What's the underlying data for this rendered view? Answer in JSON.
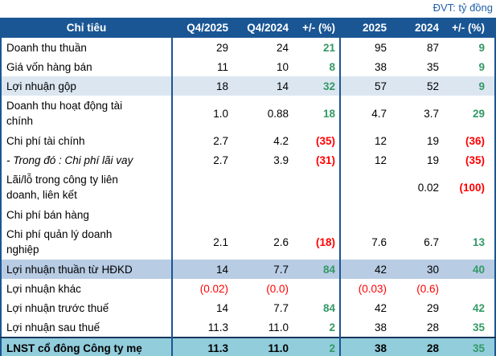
{
  "meta": {
    "unit_note": "ĐVT: tỷ đồng"
  },
  "colors": {
    "header_bg": "#1A5694",
    "highlight_light": "#DCE6F1",
    "highlight_medium": "#B8CCE4",
    "highlight_final": "#92CDDC",
    "positive": "#339966",
    "negative": "#FF0000",
    "note_blue": "#1F5FA8"
  },
  "table": {
    "columns": [
      "Chỉ tiêu",
      "Q4/2025",
      "Q4/2024",
      "+/- (%)",
      "2025",
      "2024",
      "+/- (%)"
    ],
    "rows": [
      {
        "label": "Doanh thu thuần",
        "q4_2025": "29",
        "q4_2024": "24",
        "chg_q": "21",
        "y2025": "95",
        "y2024": "87",
        "chg_y": "9"
      },
      {
        "label": "Giá vốn hàng bán",
        "q4_2025": "11",
        "q4_2024": "10",
        "chg_q": "8",
        "y2025": "38",
        "y2024": "35",
        "chg_y": "9"
      },
      {
        "label": "Lợi nhuận gộp",
        "q4_2025": "18",
        "q4_2024": "14",
        "chg_q": "32",
        "y2025": "57",
        "y2024": "52",
        "chg_y": "9"
      },
      {
        "label": "Doanh thu hoạt động tài chính",
        "q4_2025": "1.0",
        "q4_2024": "0.88",
        "chg_q": "18",
        "y2025": "4.7",
        "y2024": "3.7",
        "chg_y": "29"
      },
      {
        "label": "Chi phí tài chính",
        "q4_2025": "2.7",
        "q4_2024": "4.2",
        "chg_q": "(35)",
        "y2025": "12",
        "y2024": "19",
        "chg_y": "(36)"
      },
      {
        "label": "- Trong đó : Chi phí lãi vay",
        "q4_2025": "2.7",
        "q4_2024": "3.9",
        "chg_q": "(31)",
        "y2025": "12",
        "y2024": "19",
        "chg_y": "(35)"
      },
      {
        "label": "Lãi/lỗ trong công ty liên doanh, liên kết",
        "q4_2025": "",
        "q4_2024": "",
        "chg_q": "",
        "y2025": "",
        "y2024": "0.02",
        "chg_y": "(100)"
      },
      {
        "label": "Chi phí bán hàng",
        "q4_2025": "",
        "q4_2024": "",
        "chg_q": "",
        "y2025": "",
        "y2024": "",
        "chg_y": ""
      },
      {
        "label": "Chi phí quản lý doanh nghiệp",
        "q4_2025": "2.1",
        "q4_2024": "2.6",
        "chg_q": "(18)",
        "y2025": "7.6",
        "y2024": "6.7",
        "chg_y": "13"
      },
      {
        "label": "Lợi nhuận thuần từ HĐKD",
        "q4_2025": "14",
        "q4_2024": "7.7",
        "chg_q": "84",
        "y2025": "42",
        "y2024": "30",
        "chg_y": "40"
      },
      {
        "label": "Lợi nhuận khác",
        "q4_2025": "(0.02)",
        "q4_2024": "(0.0)",
        "chg_q": "",
        "y2025": "(0.03)",
        "y2024": "(0.6)",
        "chg_y": ""
      },
      {
        "label": "Lợi nhuận trước thuế",
        "q4_2025": "14",
        "q4_2024": "7.7",
        "chg_q": "84",
        "y2025": "42",
        "y2024": "29",
        "chg_y": "42"
      },
      {
        "label": "Lợi nhuận sau thuế",
        "q4_2025": "11.3",
        "q4_2024": "11.0",
        "chg_q": "2",
        "y2025": "38",
        "y2024": "28",
        "chg_y": "35"
      },
      {
        "label": "LNST cổ đông Công ty mẹ",
        "q4_2025": "11.3",
        "q4_2024": "11.0",
        "chg_q": "2",
        "y2025": "38",
        "y2024": "28",
        "chg_y": "35"
      }
    ]
  }
}
